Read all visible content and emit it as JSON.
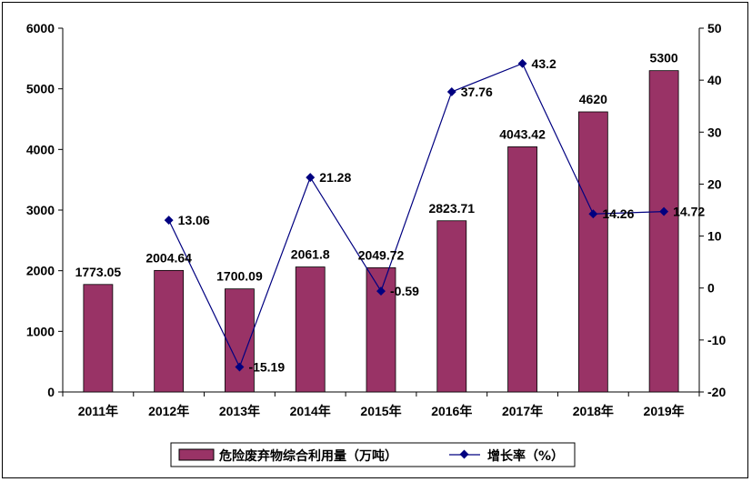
{
  "chart_data": {
    "type": "bar",
    "categories": [
      "2011年",
      "2012年",
      "2013年",
      "2014年",
      "2015年",
      "2016年",
      "2017年",
      "2018年",
      "2019年"
    ],
    "series": [
      {
        "name": "危险废弃物综合利用量（万吨）",
        "type": "bar",
        "axis": "left",
        "color": "#993366",
        "values": [
          1773.05,
          2004.64,
          1700.09,
          2061.8,
          2049.72,
          2823.71,
          4043.42,
          4620,
          5300
        ],
        "labels": [
          "1773.05",
          "2004.64",
          "1700.09",
          "2061.8",
          "2049.72",
          "2823.71",
          "4043.42",
          "4620",
          "5300"
        ]
      },
      {
        "name": "增长率（%）",
        "type": "line",
        "axis": "right",
        "color": "#000080",
        "values": [
          null,
          13.06,
          -15.19,
          21.28,
          -0.59,
          37.76,
          43.2,
          14.26,
          14.72
        ],
        "labels": [
          "",
          "13.06",
          "-15.19",
          "21.28",
          "-0.59",
          "37.76",
          "43.2",
          "14.26",
          "14.72"
        ]
      }
    ],
    "y_left": {
      "min": 0,
      "max": 6000,
      "ticks": [
        "0",
        "1000",
        "2000",
        "3000",
        "4000",
        "5000",
        "6000"
      ]
    },
    "y_right": {
      "min": -20,
      "max": 50,
      "ticks": [
        "-20",
        "-10",
        "0",
        "10",
        "20",
        "30",
        "40",
        "50"
      ]
    },
    "legend_position": "bottom",
    "grid": false
  }
}
